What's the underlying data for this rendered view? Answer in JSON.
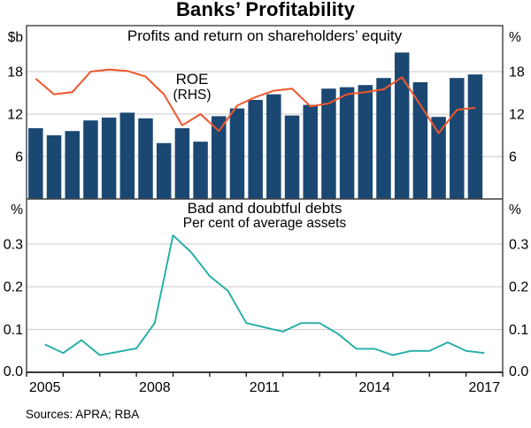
{
  "page": {
    "title": "Banks’ Profitability",
    "sources": "Sources: APRA; RBA"
  },
  "colors": {
    "bar": "#1B4872",
    "roe_line": "#F0562B",
    "bad_debts_line": "#22AEA4",
    "grid": "#C9C9C9",
    "frame": "#3F3F3F",
    "axis": "#111111",
    "panel_title": "#16365E"
  },
  "chart_data": [
    {
      "type": "bar",
      "panel": "top",
      "title": "Profits and return on shareholders’ equity",
      "unit_left": "$b",
      "unit_right": "%",
      "ylim": [
        0,
        24.5
      ],
      "yticks": [
        6,
        12,
        18
      ],
      "ytick_labels": [
        "6",
        "12",
        "18"
      ],
      "grid": true,
      "x_range_years": [
        2005,
        2018
      ],
      "xtick_label_years": [
        "2005",
        "2008",
        "2011",
        "2014",
        "2017"
      ],
      "categories": [
        "2005 H1",
        "2005 H2",
        "2006 H1",
        "2006 H2",
        "2007 H1",
        "2007 H2",
        "2008 H1",
        "2008 H2",
        "2009 H1",
        "2009 H2",
        "2010 H1",
        "2010 H2",
        "2011 H1",
        "2011 H2",
        "2012 H1",
        "2012 H2",
        "2013 H1",
        "2013 H2",
        "2014 H1",
        "2014 H2",
        "2015 H1",
        "2015 H2",
        "2016 H1",
        "2016 H2",
        "2017 H1"
      ],
      "series": [
        {
          "name": "Profits",
          "type": "bar",
          "axis": "left",
          "unit": "$b",
          "values": [
            10.0,
            9.0,
            9.6,
            11.1,
            11.5,
            12.2,
            11.4,
            7.9,
            10.0,
            8.1,
            11.7,
            12.8,
            14.0,
            14.8,
            11.8,
            13.3,
            15.6,
            15.8,
            16.1,
            17.1,
            20.7,
            16.5,
            11.6,
            17.1,
            17.6
          ]
        },
        {
          "name": "ROE (RHS)",
          "type": "line",
          "axis": "right",
          "unit": "%",
          "values": [
            17.0,
            14.8,
            15.1,
            18.0,
            18.3,
            18.1,
            17.3,
            14.8,
            10.4,
            12.0,
            9.6,
            13.2,
            14.4,
            15.3,
            15.6,
            13.1,
            13.5,
            14.8,
            15.1,
            15.5,
            17.2,
            13.3,
            9.3,
            12.6,
            12.9
          ]
        }
      ],
      "annotation": {
        "lines": [
          "ROE",
          "(RHS)"
        ]
      }
    },
    {
      "type": "line",
      "panel": "bottom",
      "title": "Bad and doubtful debts",
      "subtitle": "Per cent of average assets",
      "unit_left": "%",
      "unit_right": "%",
      "ylim": [
        0,
        0.405
      ],
      "yticks": [
        0.1,
        0.2,
        0.3
      ],
      "ytick_labels": [
        "0.1",
        "0.2",
        "0.3"
      ],
      "baseline_label": "0.0",
      "grid": true,
      "categories": [
        "2005 H1",
        "2005 H2",
        "2006 H1",
        "2006 H2",
        "2007 H1",
        "2007 H2",
        "2008 H1",
        "2008 H2",
        "2009 H1",
        "2009 H2",
        "2010 H1",
        "2010 H2",
        "2011 H1",
        "2011 H2",
        "2012 H1",
        "2012 H2",
        "2013 H1",
        "2013 H2",
        "2014 H1",
        "2014 H2",
        "2015 H1",
        "2015 H2",
        "2016 H1",
        "2016 H2",
        "2017 H1"
      ],
      "series": [
        {
          "name": "Bad and doubtful debts",
          "type": "line",
          "axis": "left",
          "unit": "%",
          "values": [
            0.065,
            0.045,
            0.075,
            0.04,
            0.048,
            0.056,
            0.115,
            0.32,
            0.28,
            0.225,
            0.19,
            0.115,
            0.105,
            0.095,
            0.115,
            0.115,
            0.09,
            0.055,
            0.055,
            0.04,
            0.05,
            0.05,
            0.07,
            0.05,
            0.045
          ]
        }
      ]
    }
  ]
}
